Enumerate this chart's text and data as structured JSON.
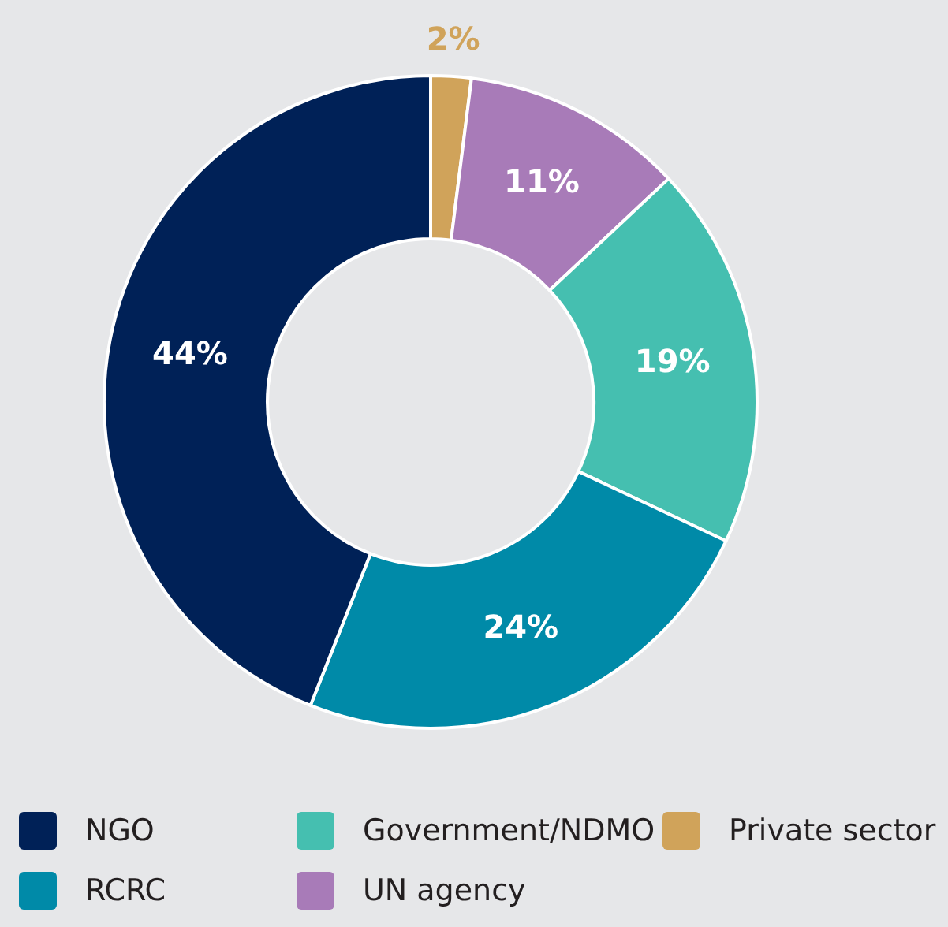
{
  "chart_data": {
    "type": "donut",
    "categories": [
      "Private sector",
      "UN agency",
      "Government/NDMO",
      "RCRC",
      "NGO"
    ],
    "values": [
      2,
      11,
      19,
      24,
      44
    ],
    "colors": [
      "#d0a35a",
      "#a87bb8",
      "#45bfb0",
      "#008aa8",
      "#002157"
    ],
    "value_labels": [
      "2%",
      "11%",
      "19%",
      "24%",
      "44%"
    ],
    "legend": "bottom"
  }
}
